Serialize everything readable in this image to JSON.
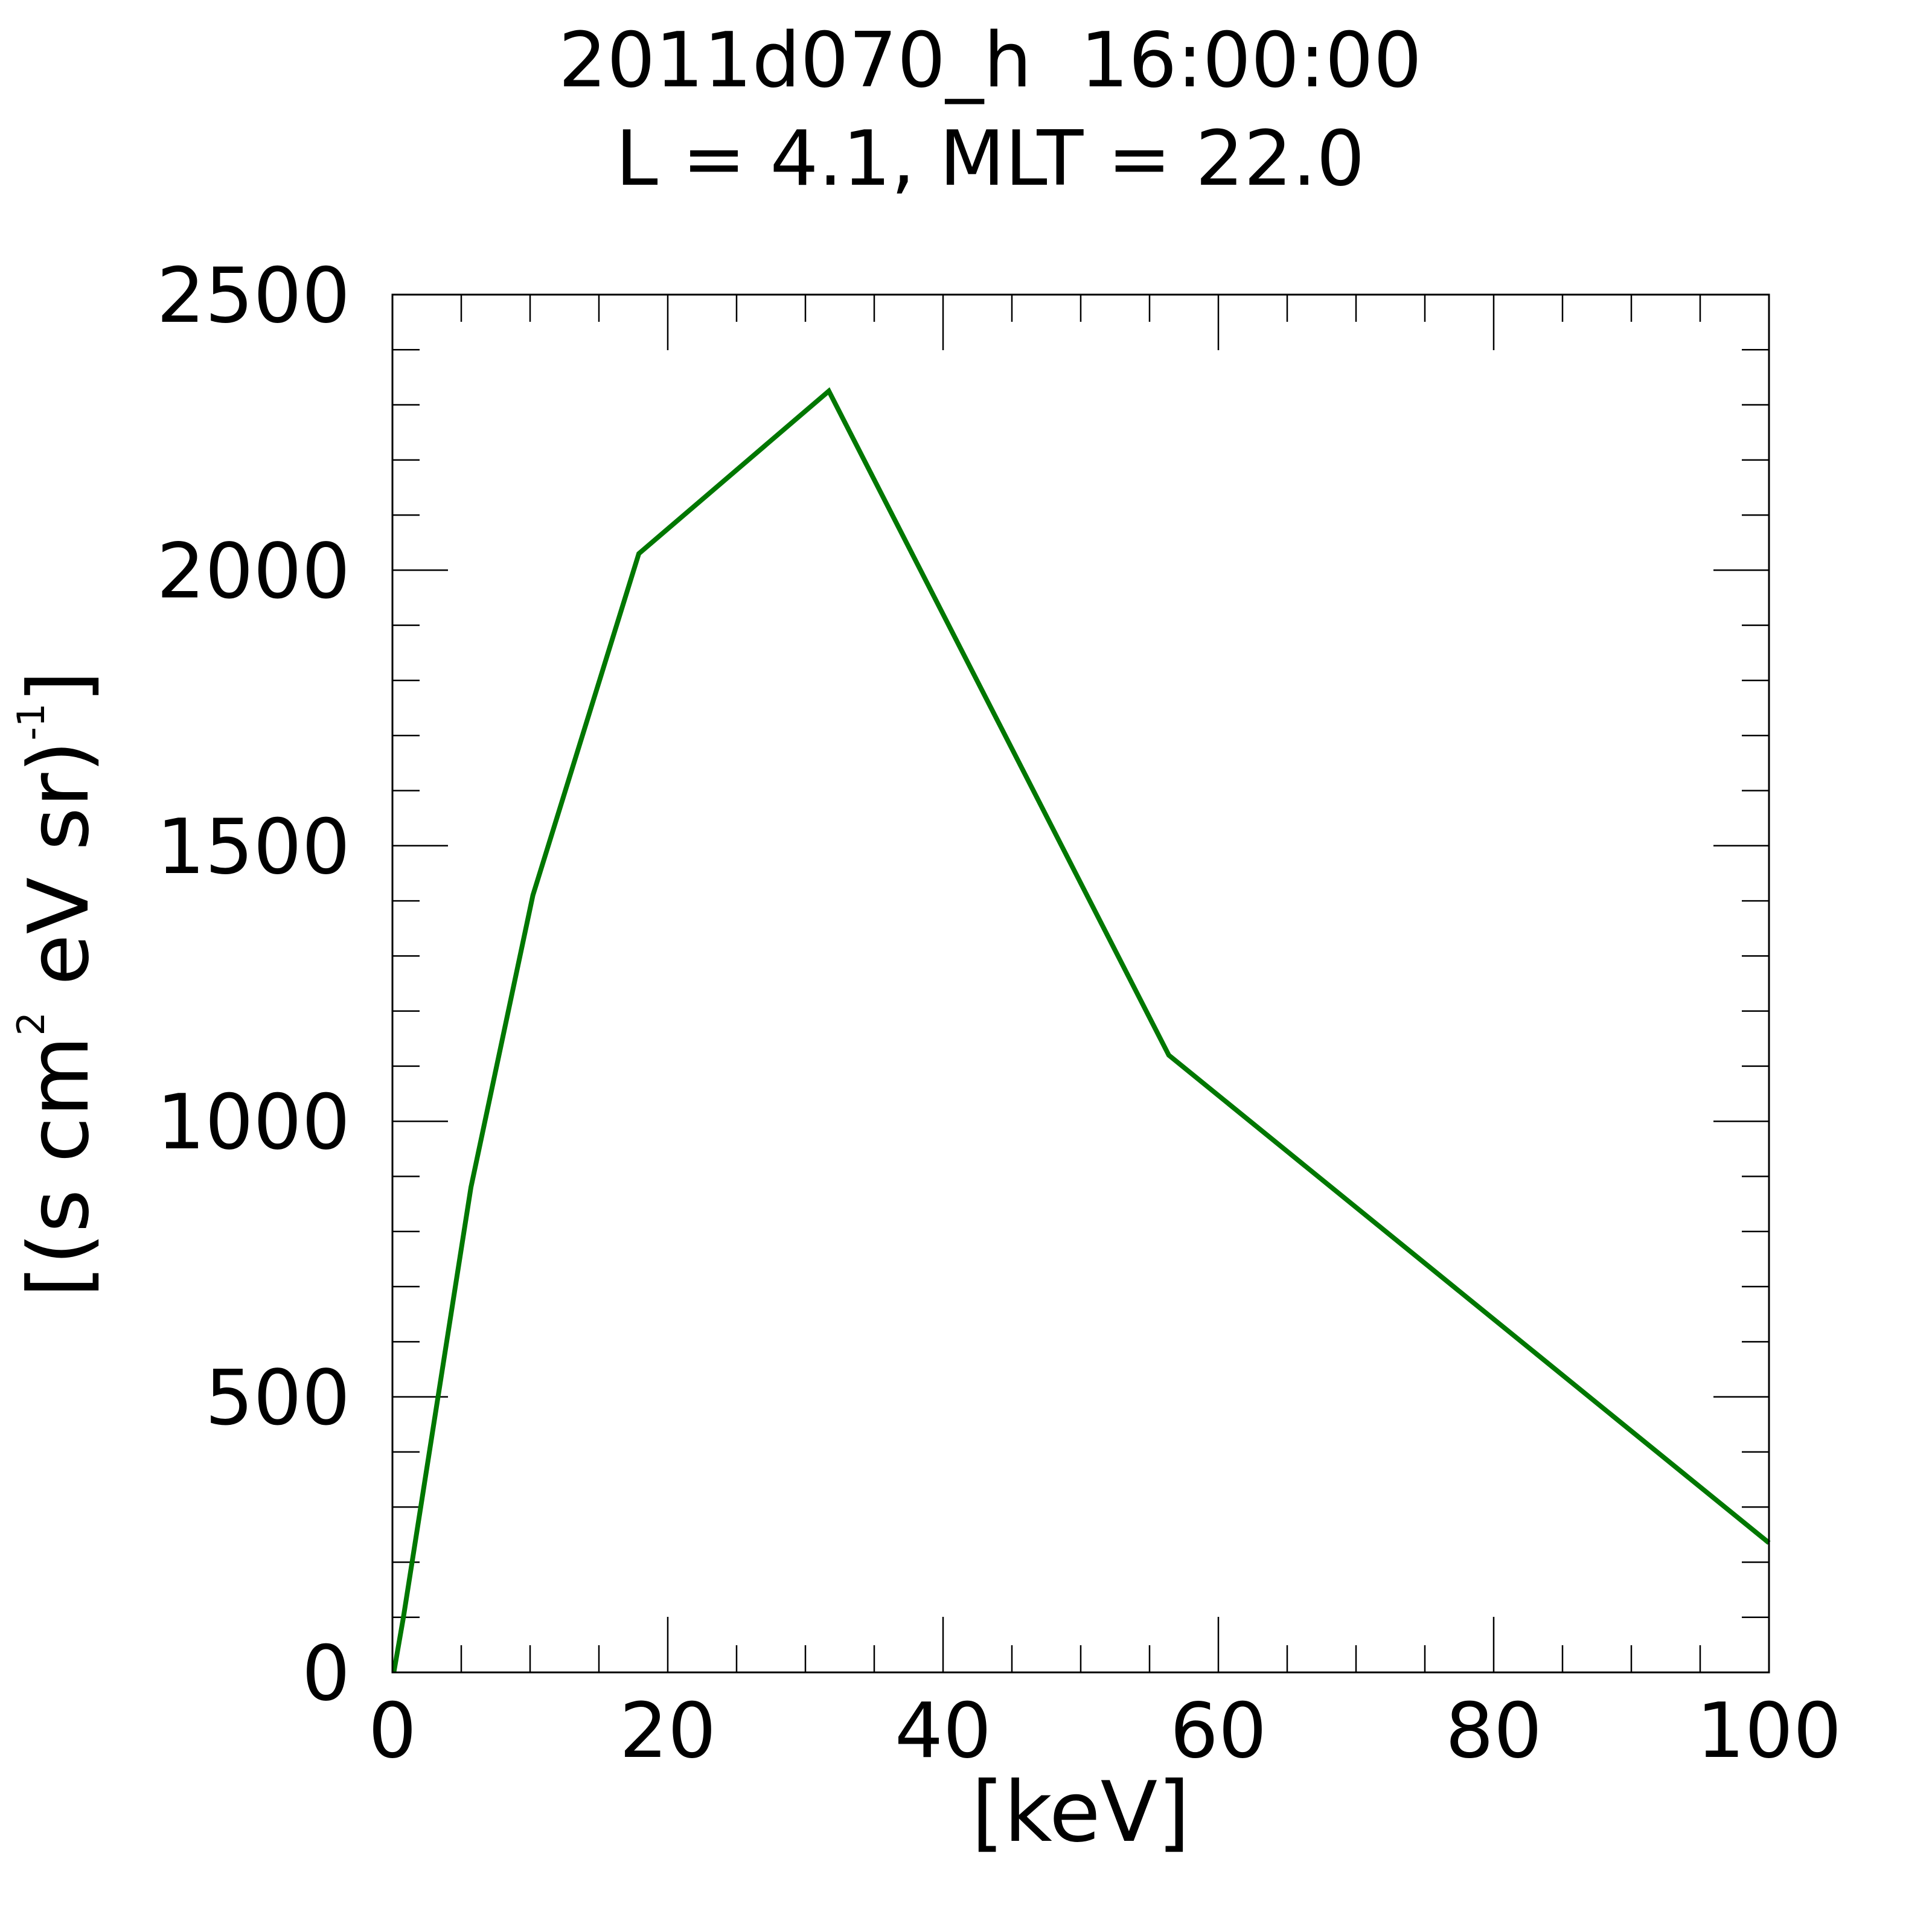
{
  "chart_data": {
    "type": "line",
    "title_line1": "2011d070_h  16:00:00",
    "title_line2": "L = 4.1, MLT = 22.0",
    "xlabel": "[keV]",
    "ylabel_parts": {
      "part1": "[(s cm",
      "sup1": "2",
      "part2": " eV sr)",
      "sup2": "-1",
      "part3": "]"
    },
    "xlim": [
      0,
      100
    ],
    "ylim": [
      0,
      2500
    ],
    "x_ticks": [
      0,
      20,
      40,
      60,
      80,
      100
    ],
    "x_tick_labels": [
      "0",
      "20",
      "40",
      "60",
      "80",
      "100"
    ],
    "x_minor_step": 5,
    "y_ticks": [
      0,
      500,
      1000,
      1500,
      2000,
      2500
    ],
    "y_tick_labels": [
      "0",
      "500",
      "1000",
      "1500",
      "2000",
      "2500"
    ],
    "y_minor_step": 100,
    "grid": false,
    "series": [
      {
        "color": "#007700",
        "points": [
          [
            0.1,
            0
          ],
          [
            0.8,
            100
          ],
          [
            5.7,
            880
          ],
          [
            10.2,
            1410
          ],
          [
            17.9,
            2030
          ],
          [
            31.7,
            2325
          ],
          [
            56.4,
            1120
          ],
          [
            100,
            235
          ]
        ]
      }
    ]
  }
}
